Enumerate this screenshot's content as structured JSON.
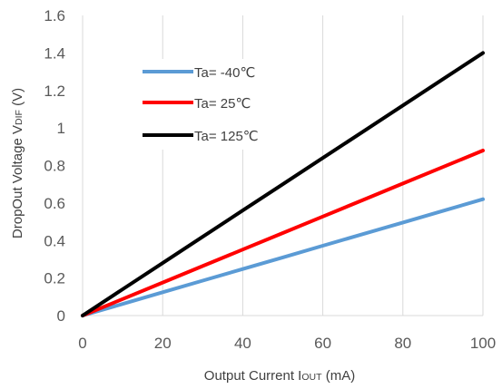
{
  "chart_data": {
    "type": "line",
    "x": [
      0,
      10,
      20,
      30,
      40,
      50,
      60,
      70,
      80,
      90,
      100
    ],
    "series": [
      {
        "name": "Ta= -40℃",
        "color": "#5b9bd5",
        "values": [
          0.0,
          0.062,
          0.124,
          0.186,
          0.248,
          0.31,
          0.372,
          0.434,
          0.496,
          0.558,
          0.62
        ]
      },
      {
        "name": "Ta= 25℃",
        "color": "#ff0000",
        "values": [
          0.0,
          0.088,
          0.176,
          0.264,
          0.352,
          0.44,
          0.528,
          0.616,
          0.704,
          0.792,
          0.88
        ]
      },
      {
        "name": "Ta= 125℃",
        "color": "#000000",
        "values": [
          0.0,
          0.14,
          0.28,
          0.42,
          0.56,
          0.7,
          0.84,
          0.98,
          1.12,
          1.26,
          1.4
        ]
      }
    ],
    "xlim": [
      0,
      100
    ],
    "ylim": [
      0,
      1.6
    ],
    "x_ticks": [
      "0",
      "20",
      "40",
      "60",
      "80",
      "100"
    ],
    "y_ticks": [
      "0",
      "0.2",
      "0.4",
      "0.6",
      "0.8",
      "1",
      "1.2",
      "1.4",
      "1.6"
    ],
    "xlabel": {
      "main": "Output Current I",
      "sub": "OUT",
      "unit": " (mA)"
    },
    "ylabel": {
      "main": "DropOut Voltage V",
      "sub": "DIF",
      "unit": " (V)"
    },
    "grid": "vertical",
    "legend_position": "upper-left"
  }
}
